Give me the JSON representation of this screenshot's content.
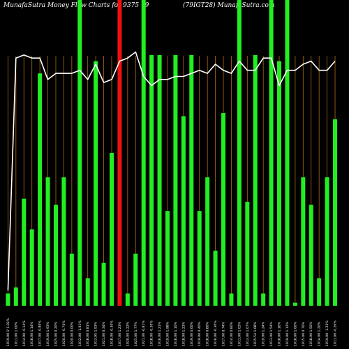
{
  "header": {
    "left": "MunafaSutra  Money Flow  Charts for 9375   9",
    "right": "(79IGT28) MunafaSutra.com"
  },
  "colors": {
    "background": "#000000",
    "up_bar": "#22ee22",
    "down_bar": "#ee1111",
    "gridline": "#b06a18",
    "line": "#ffffff",
    "label": "#ffffff"
  },
  "chart_data": {
    "type": "bar",
    "ylim": [
      0,
      100
    ],
    "grid": true,
    "x": [
      "1019.00 1\"1.02%",
      "1011.00 1.00%",
      "1014.00 -0.14%",
      "1018.00 1.14%",
      "1017.00 -0.80%",
      "1019.00 1.93%",
      "1025.00 0.20%",
      "1020.00 -0.76%",
      "1020.00 0.00%",
      "1012.00 -1.01%",
      "1018.00 0.81%",
      "1013.95 1.93%",
      "1021.00 0.34%",
      "1018.00 -0.30%",
      "1017.00 1.23%",
      "1020.00 1.22%",
      "1025.00 1.77%",
      "1021.00 -0.81%",
      "1018.00 -0.30%",
      "1016.00 1.21%",
      "1019.00 1.98%",
      "1018.00 1.10%",
      "1018.00 1.23%",
      "1019.00 0.60%",
      "1019.00 0.40%",
      "1018.00 0.80%",
      "1016.00 -0.30%",
      "1017.00 0.74%",
      "1014.00 0.80%",
      "1011.00 1.03%",
      "1013.00 1.07%",
      "1015.54 1.08%",
      "1019.00 1.24%",
      "1013.00 1.54%",
      "1018.00 1.16%",
      "1019.00 1.12%",
      "1018.00 1.00%",
      "1015.00 0.70%",
      "1018.00 1.50%",
      "1014.00 1.20%",
      "1019.00 -1.22%",
      "1011.00 -0.20%"
    ],
    "series": [
      {
        "values": [
          4,
          6,
          35,
          25,
          76,
          42,
          33,
          42,
          17,
          100,
          9,
          80,
          14,
          50,
          100,
          4,
          17,
          100,
          82,
          82,
          31,
          82,
          62,
          82,
          31,
          42,
          18,
          63,
          4,
          100,
          34,
          82,
          4,
          100,
          80,
          100,
          1,
          42,
          33,
          9,
          42,
          61
        ],
        "colors": [
          "g",
          "g",
          "g",
          "g",
          "g",
          "g",
          "g",
          "g",
          "g",
          "g",
          "g",
          "g",
          "g",
          "g",
          "r",
          "g",
          "g",
          "g",
          "g",
          "g",
          "g",
          "g",
          "g",
          "g",
          "g",
          "g",
          "g",
          "g",
          "g",
          "g",
          "g",
          "g",
          "g",
          "g",
          "g",
          "g",
          "g",
          "g",
          "g",
          "g",
          "g",
          "g"
        ]
      },
      {
        "line": [
          5,
          81,
          82,
          81,
          81,
          74,
          76,
          76,
          76,
          77,
          74,
          79,
          73,
          74,
          80,
          81,
          83,
          75,
          72,
          74,
          74,
          75,
          75,
          76,
          77,
          76,
          79,
          77,
          76,
          80,
          77,
          77,
          81,
          81,
          72,
          77,
          77,
          79,
          80,
          77,
          77,
          80
        ]
      }
    ]
  }
}
